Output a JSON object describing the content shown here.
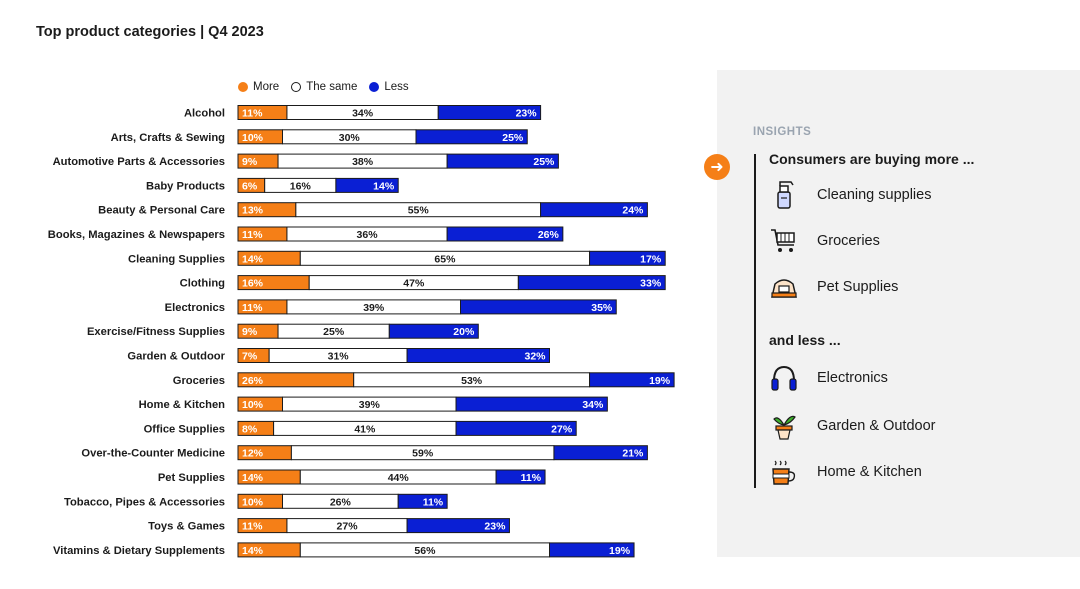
{
  "title": "Top product categories | Q4 2023",
  "legend": {
    "more": "More",
    "same": "The same",
    "less": "Less"
  },
  "colors": {
    "more": "#f57f17",
    "same": "#ffffff",
    "less": "#0a1fd4",
    "outline": "#1b1b1b"
  },
  "chart_data": {
    "type": "bar",
    "orientation": "horizontal",
    "stacked": true,
    "title": "Top product categories | Q4 2023",
    "categories": [
      "Alcohol",
      "Arts, Crafts & Sewing",
      "Automotive Parts & Accessories",
      "Baby Products",
      "Beauty & Personal Care",
      "Books, Magazines & Newspapers",
      "Cleaning Supplies",
      "Clothing",
      "Electronics",
      "Exercise/Fitness Supplies",
      "Garden & Outdoor",
      "Groceries",
      "Home & Kitchen",
      "Office Supplies",
      "Over-the-Counter Medicine",
      "Pet Supplies",
      "Tobacco, Pipes & Accessories",
      "Toys & Games",
      "Vitamins & Dietary Supplements"
    ],
    "series": [
      {
        "name": "More",
        "values": [
          11,
          10,
          9,
          6,
          13,
          11,
          14,
          16,
          11,
          9,
          7,
          26,
          10,
          8,
          12,
          14,
          10,
          11,
          14
        ]
      },
      {
        "name": "The same",
        "values": [
          34,
          30,
          38,
          16,
          55,
          36,
          65,
          47,
          39,
          25,
          31,
          53,
          39,
          41,
          59,
          44,
          26,
          27,
          56
        ]
      },
      {
        "name": "Less",
        "values": [
          23,
          25,
          25,
          14,
          24,
          26,
          17,
          33,
          35,
          20,
          32,
          19,
          34,
          27,
          21,
          11,
          11,
          23,
          19
        ]
      }
    ],
    "value_suffix": "%",
    "legend_position": "top"
  },
  "insights": {
    "label": "INSIGHTS",
    "more_heading": "Consumers are buying more ...",
    "more_items": [
      {
        "label": "Cleaning supplies",
        "icon": "spray-bottle-icon"
      },
      {
        "label": "Groceries",
        "icon": "shopping-cart-icon"
      },
      {
        "label": "Pet Supplies",
        "icon": "pet-bed-icon"
      }
    ],
    "less_heading": "and less ...",
    "less_items": [
      {
        "label": "Electronics",
        "icon": "headphones-icon"
      },
      {
        "label": "Garden & Outdoor",
        "icon": "plant-pot-icon"
      },
      {
        "label": "Home & Kitchen",
        "icon": "hot-mug-icon"
      }
    ]
  }
}
